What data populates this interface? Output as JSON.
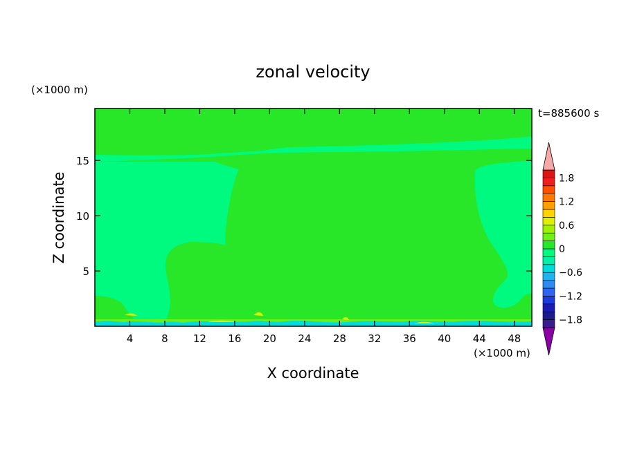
{
  "chart_data": {
    "type": "heatmap",
    "title": "zonal velocity",
    "xlabel": "X coordinate",
    "ylabel": "Z coordinate",
    "x_unit": "(×1000 m)",
    "y_unit": "(×1000 m)",
    "time_label": "t=885600 s",
    "xlim": [
      0,
      50
    ],
    "ylim": [
      0,
      19.7
    ],
    "x_ticks": [
      4,
      8,
      12,
      16,
      20,
      24,
      28,
      32,
      36,
      40,
      44,
      48
    ],
    "y_ticks": [
      5,
      10,
      15
    ],
    "colorbar": {
      "levels": [
        -2.0,
        -1.8,
        -1.6,
        -1.4,
        -1.2,
        -1.0,
        -0.8,
        -0.6,
        -0.4,
        -0.2,
        0,
        0.2,
        0.4,
        0.6,
        0.8,
        1.0,
        1.2,
        1.4,
        1.6,
        1.8,
        2.0
      ],
      "colors": [
        "#3A1C8C",
        "#1C1C8C",
        "#1C1CB4",
        "#1C3CDC",
        "#2E64F0",
        "#2E8CF0",
        "#1EB4F0",
        "#00DCDC",
        "#00F0A8",
        "#00FA80",
        "#28E628",
        "#6EF014",
        "#A0F000",
        "#DCF000",
        "#FFD200",
        "#FFA000",
        "#FF7800",
        "#FF5000",
        "#F01E1E",
        "#DC1414"
      ],
      "under_color": "#8C00A8",
      "over_color": "#F4A8A8",
      "tick_labels": [
        "1.8",
        "1.2",
        "0.6",
        "0",
        "−0.6",
        "−1.2",
        "−1.8"
      ]
    },
    "regions": {
      "background_level": "-0.2 to 0",
      "background_color": "#00FA80",
      "positive_level": "0 to 0.2",
      "positive_color": "#28E628"
    }
  }
}
